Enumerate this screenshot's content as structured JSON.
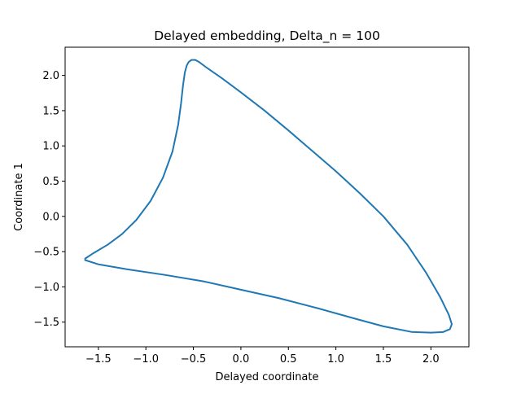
{
  "chart_data": {
    "type": "line",
    "title": "Delayed embedding, Delta_n = 100",
    "xlabel": "Delayed coordinate",
    "ylabel": "Coordinate 1",
    "xlim": [
      -1.85,
      2.4
    ],
    "ylim": [
      -1.85,
      2.4
    ],
    "xticks": [
      -1.5,
      -1.0,
      -0.5,
      0.0,
      0.5,
      1.0,
      1.5,
      2.0
    ],
    "xtick_labels": [
      "−1.5",
      "−1.0",
      "−0.5",
      "0.0",
      "0.5",
      "1.0",
      "1.5",
      "2.0"
    ],
    "yticks": [
      -1.5,
      -1.0,
      -0.5,
      0.0,
      0.5,
      1.0,
      1.5,
      2.0
    ],
    "ytick_labels": [
      "−1.5",
      "−1.0",
      "−0.5",
      "0.0",
      "0.5",
      "1.0",
      "1.5",
      "2.0"
    ],
    "grid": false,
    "color": "#1f77b4",
    "series": [
      {
        "x": [
          -1.64,
          -1.55,
          -1.4,
          -1.25,
          -1.1,
          -0.95,
          -0.82,
          -0.72,
          -0.66,
          -0.63,
          -0.61,
          -0.59,
          -0.57,
          -0.55,
          -0.52,
          -0.48,
          -0.44,
          -0.35,
          -0.2,
          0.0,
          0.25,
          0.5,
          0.75,
          1.0,
          1.25,
          1.5,
          1.75,
          1.95,
          2.1,
          2.19,
          2.22,
          2.2,
          2.13,
          2.0,
          1.8,
          1.5,
          1.2,
          0.8,
          0.4,
          0.0,
          -0.4,
          -0.8,
          -1.2,
          -1.5,
          -1.64
        ],
        "y": [
          -0.6,
          -0.52,
          -0.4,
          -0.25,
          -0.05,
          0.22,
          0.55,
          0.92,
          1.3,
          1.6,
          1.85,
          2.04,
          2.14,
          2.19,
          2.22,
          2.22,
          2.19,
          2.1,
          1.96,
          1.76,
          1.5,
          1.22,
          0.93,
          0.64,
          0.33,
          0.0,
          -0.4,
          -0.8,
          -1.15,
          -1.4,
          -1.53,
          -1.6,
          -1.64,
          -1.65,
          -1.64,
          -1.56,
          -1.45,
          -1.3,
          -1.16,
          -1.04,
          -0.92,
          -0.83,
          -0.75,
          -0.68,
          -0.62
        ]
      }
    ]
  }
}
